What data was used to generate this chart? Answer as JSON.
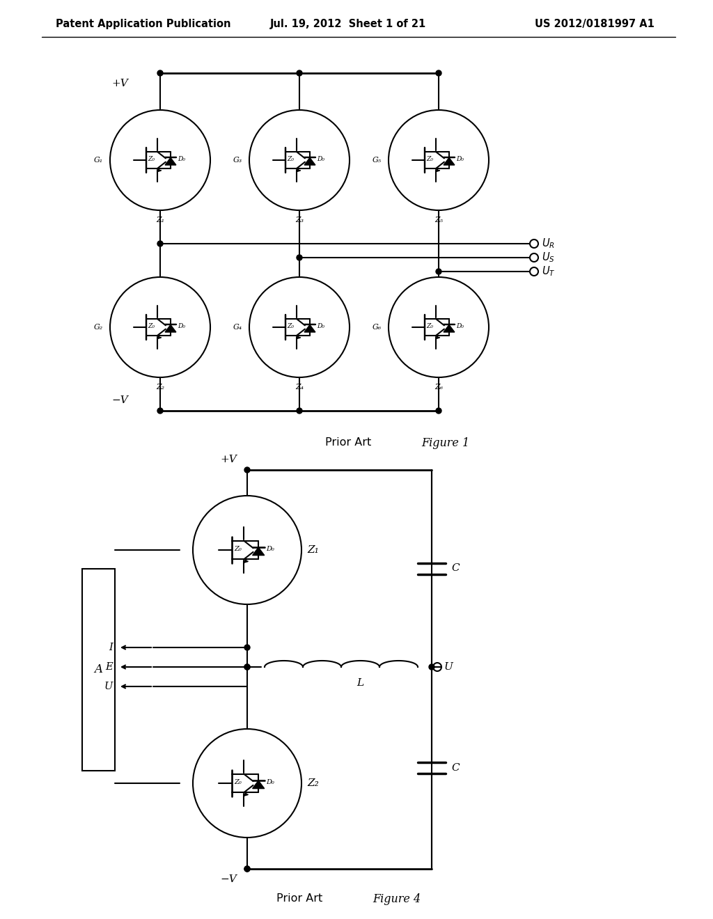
{
  "title_left": "Patent Application Publication",
  "title_mid": "Jul. 19, 2012  Sheet 1 of 21",
  "title_right": "US 2012/0181997 A1",
  "fig1_label": "Figure 1",
  "fig4_label": "Figure 4",
  "prior_art": "Prior Art",
  "background": "#ffffff",
  "line_color": "#000000",
  "fig1": {
    "pV_label": "+V",
    "nV_label": "−V",
    "G_labels": [
      "G₁",
      "G₃",
      "G₅",
      "G₂",
      "G₄",
      "G₆"
    ],
    "Z_labels_top": [
      "Z₁",
      "Z₃",
      "Z₅"
    ],
    "Z_labels_bot": [
      "Z₂",
      "Z₄",
      "Z₆"
    ],
    "Z0_label": "Z₀",
    "D0_label": "D₀"
  },
  "fig4": {
    "pV_label": "+V",
    "nV_label": "−V",
    "A_label": "A",
    "Z1_label": "Z₁",
    "Z2_label": "Z₂",
    "Z0_label": "Z₀",
    "D0_label": "D₀",
    "L_label": "L",
    "C_label": "C",
    "I_label": "I",
    "E_label": "E",
    "U_label": "U"
  }
}
